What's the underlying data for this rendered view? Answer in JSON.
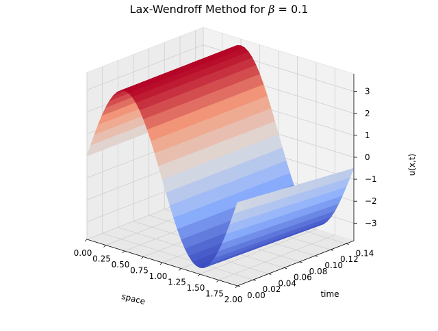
{
  "chart_data": {
    "type": "surface3d",
    "title": "Lax-Wendroff Method for β = 0.1",
    "title_prefix": "Lax-Wendroff Method for ",
    "title_symbol": "β",
    "title_suffix": " = 0.1",
    "xlabel": "space",
    "ylabel": "time",
    "zlabel": "u(x,t)",
    "xlim": [
      0,
      2
    ],
    "ylim": [
      0,
      0.15
    ],
    "zlim": [
      -3.8,
      3.8
    ],
    "x_ticks": [
      "0.00",
      "0.25",
      "0.50",
      "0.75",
      "1.00",
      "1.25",
      "1.50",
      "1.75",
      "2.00"
    ],
    "y_ticks": [
      "0.00",
      "0.02",
      "0.04",
      "0.06",
      "0.08",
      "0.10",
      "0.12",
      "0.14"
    ],
    "z_ticks": [
      "−3",
      "−2",
      "−1",
      "0",
      "1",
      "2",
      "3"
    ],
    "colormap": "coolwarm",
    "grid": true,
    "surface": {
      "function": "u(x,t) = 3.5 * sin(pi * x) - 0.5 * (x / 2)^6 * (t / 0.15)",
      "amplitude": 3.5,
      "x_samples": 41,
      "t_samples": 16
    }
  }
}
